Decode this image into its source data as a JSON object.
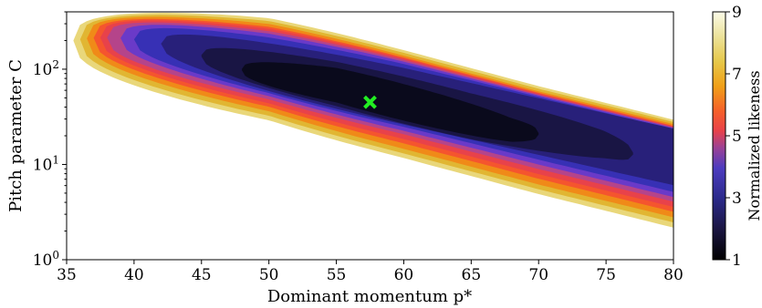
{
  "chart_data": {
    "type": "contour",
    "title": "",
    "xlabel": "Dominant momentum p*",
    "ylabel": "Pitch parameter C",
    "xlim": [
      35,
      80
    ],
    "ylim": [
      1,
      400
    ],
    "yscale": "log",
    "x_ticks": [
      35,
      40,
      45,
      50,
      55,
      60,
      65,
      70,
      75,
      80
    ],
    "x_tick_labels": [
      "35",
      "40",
      "45",
      "50",
      "55",
      "60",
      "65",
      "70",
      "75",
      "80"
    ],
    "y_ticks": [
      1,
      10,
      100
    ],
    "y_tick_labels": [
      {
        "base": "10",
        "exp": "0"
      },
      {
        "base": "10",
        "exp": "1"
      },
      {
        "base": "10",
        "exp": "2"
      }
    ],
    "colorbar": {
      "label": "Normalized likeness",
      "range": [
        1,
        9
      ],
      "ticks": [
        1,
        3,
        5,
        7,
        9
      ],
      "tick_labels": [
        "1",
        "3",
        "5",
        "7",
        "9"
      ],
      "colormap": "CMRmap"
    },
    "best_fit_marker": {
      "x": 57.5,
      "y": 45,
      "marker": "x",
      "color": "#22ee22"
    },
    "contour_levels": [
      {
        "level": 1,
        "color": "#0a0a1c",
        "ridge": [
          [
            48,
            99
          ],
          [
            55,
            68
          ],
          [
            62,
            38
          ],
          [
            68,
            23
          ],
          [
            70,
            21
          ]
        ],
        "halfwidth": 0.35
      },
      {
        "level": 2,
        "color": "#191544",
        "ridge": [
          [
            45,
            138
          ],
          [
            55,
            70
          ],
          [
            65,
            32
          ],
          [
            75,
            16
          ],
          [
            77,
            13
          ]
        ],
        "halfwidth": 0.45
      },
      {
        "level": 2.5,
        "color": "#28207a",
        "ridge": [
          [
            42,
            185
          ],
          [
            50,
            105
          ],
          [
            60,
            52
          ],
          [
            70,
            25
          ],
          [
            80,
            12
          ]
        ],
        "halfwidth": 0.54
      },
      {
        "level": 3,
        "color": "#3730b5",
        "ridge": [
          [
            40,
            205
          ],
          [
            50,
            110
          ],
          [
            60,
            53
          ],
          [
            70,
            24
          ],
          [
            80,
            11
          ]
        ],
        "halfwidth": 0.6
      },
      {
        "level": 3.5,
        "color": "#6a3ac8",
        "ridge": [
          [
            39,
            212
          ],
          [
            50,
            111
          ],
          [
            60,
            52
          ],
          [
            70,
            23
          ],
          [
            80,
            10.5
          ]
        ],
        "halfwidth": 0.66
      },
      {
        "level": 4,
        "color": "#b5448a",
        "ridge": [
          [
            38,
            215
          ],
          [
            50,
            110
          ],
          [
            60,
            51
          ],
          [
            70,
            22
          ],
          [
            80,
            10
          ]
        ],
        "halfwidth": 0.71
      },
      {
        "level": 4.5,
        "color": "#e8424a",
        "ridge": [
          [
            37.5,
            215
          ],
          [
            50,
            108
          ],
          [
            60,
            49
          ],
          [
            70,
            21
          ],
          [
            80,
            9.5
          ]
        ],
        "halfwidth": 0.77
      },
      {
        "level": 5,
        "color": "#f5552e",
        "ridge": [
          [
            37,
            213
          ],
          [
            50,
            106
          ],
          [
            60,
            47
          ],
          [
            70,
            20
          ],
          [
            80,
            9
          ]
        ],
        "halfwidth": 0.82
      },
      {
        "level": 6,
        "color": "#f08a18",
        "ridge": [
          [
            36.5,
            210
          ],
          [
            50,
            104
          ],
          [
            60,
            45
          ],
          [
            70,
            19
          ],
          [
            80,
            8.6
          ]
        ],
        "halfwidth": 0.89
      },
      {
        "level": 7,
        "color": "#e1b632",
        "ridge": [
          [
            36,
            205
          ],
          [
            50,
            102
          ],
          [
            60,
            44
          ],
          [
            70,
            18.5
          ],
          [
            80,
            8.3
          ]
        ],
        "halfwidth": 0.96
      },
      {
        "level": 8,
        "color": "#e9d77a",
        "ridge": [
          [
            35.5,
            200
          ],
          [
            50,
            100
          ],
          [
            60,
            43
          ],
          [
            70,
            18
          ],
          [
            80,
            8
          ]
        ],
        "halfwidth": 1.03
      }
    ]
  }
}
